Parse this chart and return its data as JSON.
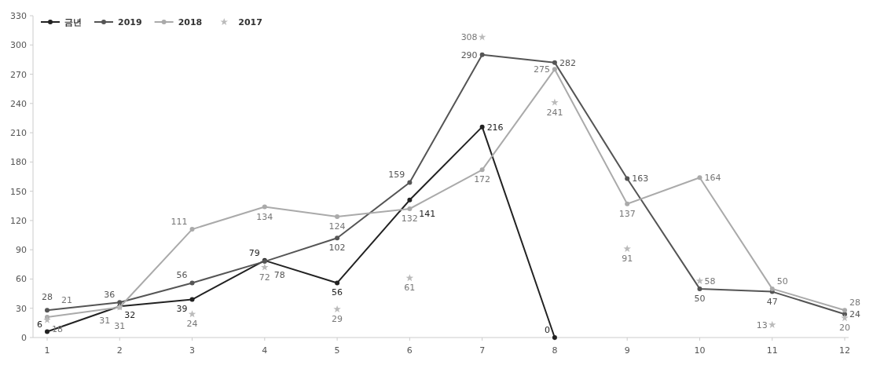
{
  "chart_data": {
    "type": "line",
    "categories": [
      "1",
      "2",
      "3",
      "4",
      "5",
      "6",
      "7",
      "8",
      "9",
      "10",
      "11",
      "12"
    ],
    "ylim": [
      0,
      330
    ],
    "yticks": [
      0,
      30,
      60,
      90,
      120,
      150,
      180,
      210,
      240,
      270,
      300,
      330
    ],
    "legend": "top left",
    "marker": "circle",
    "line_style": "solid",
    "data_labels": true,
    "grid": false,
    "series": [
      {
        "name": "금년",
        "color": "#222222",
        "values": [
          6,
          32,
          39,
          79,
          56,
          141,
          216,
          0,
          null,
          null,
          null,
          null
        ]
      },
      {
        "name": "2019",
        "color": "#555555",
        "values": [
          28,
          36,
          56,
          78,
          102,
          159,
          290,
          282,
          163,
          50,
          47,
          24
        ]
      },
      {
        "name": "2018",
        "color": "#aaaaaa",
        "values": [
          21,
          31,
          111,
          134,
          124,
          132,
          172,
          275,
          137,
          164,
          50,
          28
        ]
      },
      {
        "name": "2017",
        "type": "scatter",
        "marker": "star",
        "color": "#bbbbbb",
        "values": [
          18,
          31,
          24,
          72,
          29,
          61,
          308,
          241,
          91,
          58,
          13,
          20
        ]
      }
    ]
  }
}
